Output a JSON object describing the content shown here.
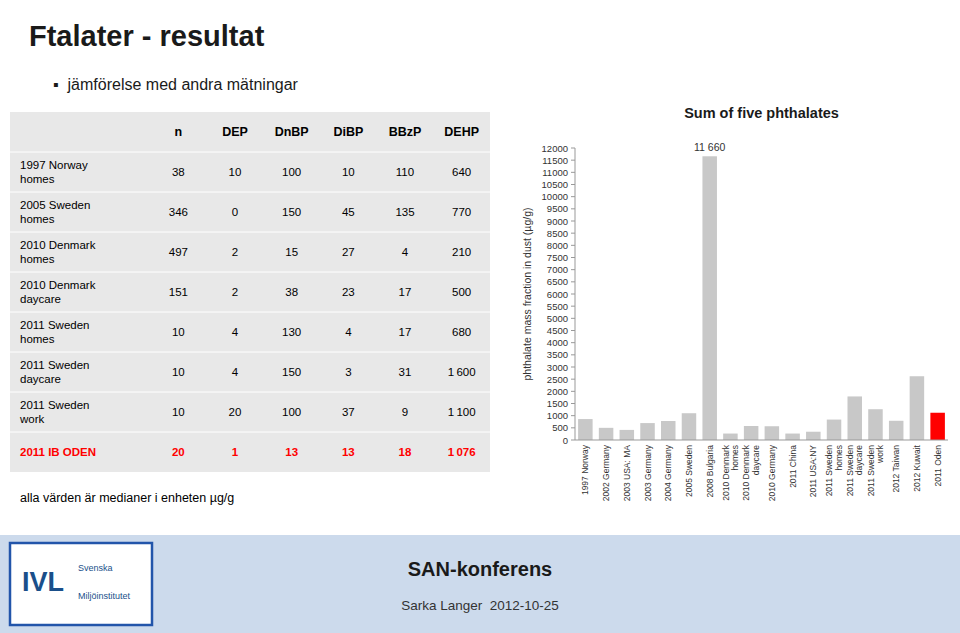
{
  "title": "Ftalater - resultat",
  "subtitle": "▪  jämförelse med andra mätningar",
  "footer": {
    "title": "SAN-konferens",
    "text": "Sarka Langer  2012-10-25",
    "logo": [
      "IVL",
      "Svenska",
      "Miljöinstitutet"
    ]
  },
  "chart_data": [
    {
      "type": "table",
      "headers": [
        "n",
        "DEP",
        "DnBP",
        "DiBP",
        "BBzP",
        "DEHP"
      ],
      "rows": [
        {
          "label": "1997 Norway\nhomes",
          "values": [
            38,
            10,
            100,
            10,
            110,
            640
          ],
          "value_labels": [
            "38",
            "10",
            "100",
            "10",
            "110",
            "640"
          ]
        },
        {
          "label": "2005 Sweden\nhomes",
          "values": [
            346,
            0,
            150,
            45,
            135,
            770
          ],
          "value_labels": [
            "346",
            "0",
            "150",
            "45",
            "135",
            "770"
          ]
        },
        {
          "label": "2010 Denmark\nhomes",
          "values": [
            497,
            2,
            15,
            27,
            4,
            210
          ],
          "value_labels": [
            "497",
            "2",
            "15",
            "27",
            "4",
            "210"
          ]
        },
        {
          "label": "2010 Denmark\ndaycare",
          "values": [
            151,
            2,
            38,
            23,
            17,
            500
          ],
          "value_labels": [
            "151",
            "2",
            "38",
            "23",
            "17",
            "500"
          ]
        },
        {
          "label": "2011 Sweden\nhomes",
          "values": [
            10,
            4,
            130,
            4,
            17,
            680
          ],
          "value_labels": [
            "10",
            "4",
            "130",
            "4",
            "17",
            "680"
          ]
        },
        {
          "label": "2011 Sweden\ndaycare",
          "values": [
            10,
            4,
            150,
            3,
            31,
            1600
          ],
          "value_labels": [
            "10",
            "4",
            "150",
            "3",
            "31",
            "1 600"
          ]
        },
        {
          "label": "2011 Sweden\nwork",
          "values": [
            10,
            20,
            100,
            37,
            9,
            1100
          ],
          "value_labels": [
            "10",
            "20",
            "100",
            "37",
            "9",
            "1 100"
          ]
        },
        {
          "label": "2011 IB ODEN",
          "values": [
            20,
            1,
            13,
            13,
            18,
            1076
          ],
          "value_labels": [
            "20",
            "1",
            "13",
            "13",
            "18",
            "1 076"
          ],
          "color": "#ff0000"
        }
      ],
      "annotation": "alla värden är medianer i enheten µg/g"
    },
    {
      "type": "bar",
      "title": "Sum of five phthalates",
      "ylabel": "phthalate mass fraction in dust (µg/g)",
      "categories": [
        "1997 Norway",
        "2002 Germany",
        "2003 USA: MA",
        "2003 Germany",
        "2004 Germany",
        "2005 Sweden",
        "2008 Bulgaria",
        "2010 Denmark\nhomes",
        "2010 Denmark\ndaycare",
        "2010 Germany",
        "2011 China",
        "2011 USA:NY",
        "2011 Sweden\nhomes",
        "2011 Sweden\ndaycare",
        "2011 Sweden\nwork",
        "2012 Taiwan",
        "2012 Kuwait",
        "2011 Oden"
      ],
      "values": [
        860,
        500,
        415,
        695,
        780,
        1100,
        11660,
        265,
        575,
        565,
        265,
        340,
        840,
        1790,
        1265,
        790,
        2620,
        1120
      ],
      "colors": [
        "#c8c8c8",
        "#c8c8c8",
        "#c8c8c8",
        "#c8c8c8",
        "#c8c8c8",
        "#c8c8c8",
        "#c8c8c8",
        "#c8c8c8",
        "#c8c8c8",
        "#c8c8c8",
        "#c8c8c8",
        "#c8c8c8",
        "#c8c8c8",
        "#c8c8c8",
        "#c8c8c8",
        "#c8c8c8",
        "#c8c8c8",
        "#ff0000"
      ],
      "ylim": [
        0,
        12000
      ],
      "yticks": [
        0,
        500,
        1000,
        1500,
        2000,
        2500,
        3000,
        3500,
        4000,
        4500,
        5000,
        5500,
        6000,
        6500,
        7000,
        7500,
        8000,
        8500,
        9000,
        9500,
        10000,
        10500,
        11000,
        11500,
        12000
      ],
      "annotations": [
        {
          "category": "2008 Bulgaria",
          "text": "11 660"
        }
      ]
    }
  ]
}
